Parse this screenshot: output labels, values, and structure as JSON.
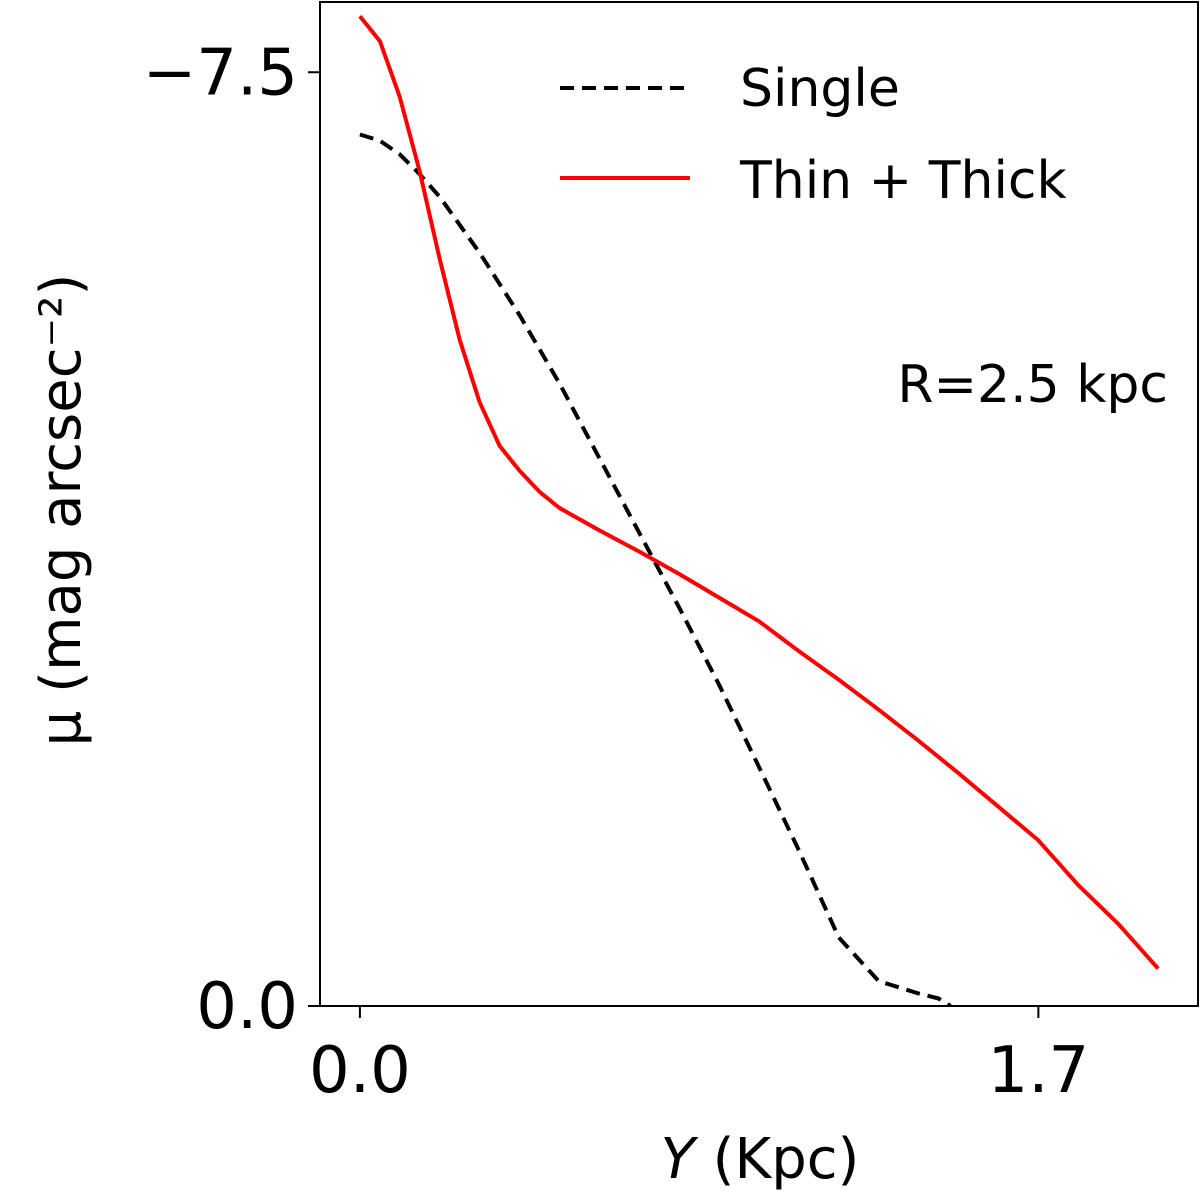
{
  "chart_data": {
    "type": "line",
    "title": "",
    "xlabel_italic": "Y",
    "xlabel_rest": " (Kpc)",
    "ylabel": "μ (mag arcsec⁻²)",
    "xlim": [
      -0.1,
      2.1
    ],
    "ylim": [
      -8.0,
      0.0
    ],
    "y_inverted": true,
    "xticks": [
      0.0,
      1.7
    ],
    "xtick_labels": [
      "0.0",
      "1.7"
    ],
    "yticks": [
      -7.5,
      0.0
    ],
    "ytick_labels": [
      "−7.5",
      "0.0"
    ],
    "legend_position": "top-right",
    "annotation": "R=2.5 kpc",
    "series": [
      {
        "name": "Single",
        "style": "dashed",
        "color": "#000000",
        "x": [
          0.0,
          0.05,
          0.1,
          0.15,
          0.2,
          0.3,
          0.4,
          0.5,
          0.6,
          0.7,
          0.8,
          0.9,
          1.0,
          1.1,
          1.2,
          1.3,
          1.4,
          1.45,
          1.48
        ],
        "y": [
          -7.0,
          -6.95,
          -6.84,
          -6.68,
          -6.5,
          -6.05,
          -5.55,
          -5.0,
          -4.4,
          -3.8,
          -3.2,
          -2.58,
          -1.92,
          -1.25,
          -0.55,
          -0.2,
          -0.1,
          -0.06,
          0.0
        ]
      },
      {
        "name": "Thin + Thick",
        "style": "solid",
        "color": "#ff0000",
        "x": [
          0.0,
          0.05,
          0.1,
          0.15,
          0.2,
          0.25,
          0.3,
          0.35,
          0.4,
          0.45,
          0.5,
          0.6,
          0.7,
          0.8,
          0.9,
          1.0,
          1.1,
          1.2,
          1.3,
          1.4,
          1.5,
          1.6,
          1.7,
          1.8,
          1.9,
          2.0
        ],
        "y": [
          -7.95,
          -7.75,
          -7.3,
          -6.7,
          -6.0,
          -5.35,
          -4.85,
          -4.5,
          -4.3,
          -4.13,
          -4.0,
          -3.82,
          -3.65,
          -3.47,
          -3.28,
          -3.09,
          -2.85,
          -2.62,
          -2.38,
          -2.13,
          -1.87,
          -1.6,
          -1.33,
          -0.97,
          -0.66,
          -0.3
        ]
      }
    ]
  }
}
